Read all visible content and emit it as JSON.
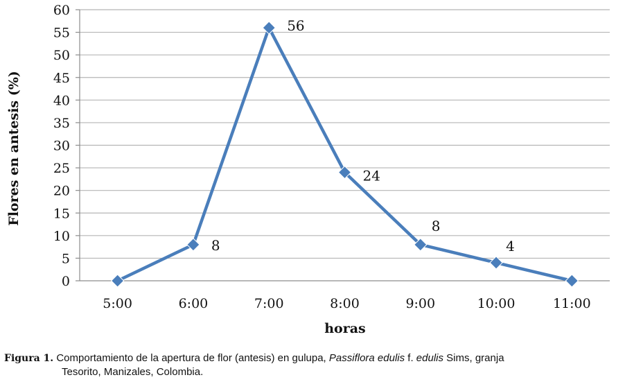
{
  "chart_data": {
    "type": "line",
    "categories": [
      "5:00",
      "6:00",
      "7:00",
      "8:00",
      "9:00",
      "10:00",
      "11:00"
    ],
    "values": [
      0,
      8,
      56,
      24,
      8,
      4,
      0
    ],
    "data_labels": [
      "",
      "8",
      "56",
      "24",
      "8",
      "4",
      ""
    ],
    "xlabel": "horas",
    "ylabel": "Flores en antesis (%)",
    "ylim": [
      0,
      60
    ],
    "ytick_step": 5,
    "yticks": [
      "0",
      "5",
      "10",
      "15",
      "20",
      "25",
      "30",
      "35",
      "40",
      "45",
      "50",
      "55",
      "60"
    ],
    "grid": true,
    "line_color": "#4a7ebb",
    "marker": "diamond"
  },
  "caption": {
    "label": "Figura 1.",
    "text_part1": " Comportamiento de la apertura de flor (antesis) en gulupa, ",
    "species_italic": "Passiflora edulis",
    "text_part2": " f. ",
    "form_italic": "edulis",
    "text_part3": " Sims, granja",
    "line2": "Tesorito, Manizales, Colombia."
  }
}
